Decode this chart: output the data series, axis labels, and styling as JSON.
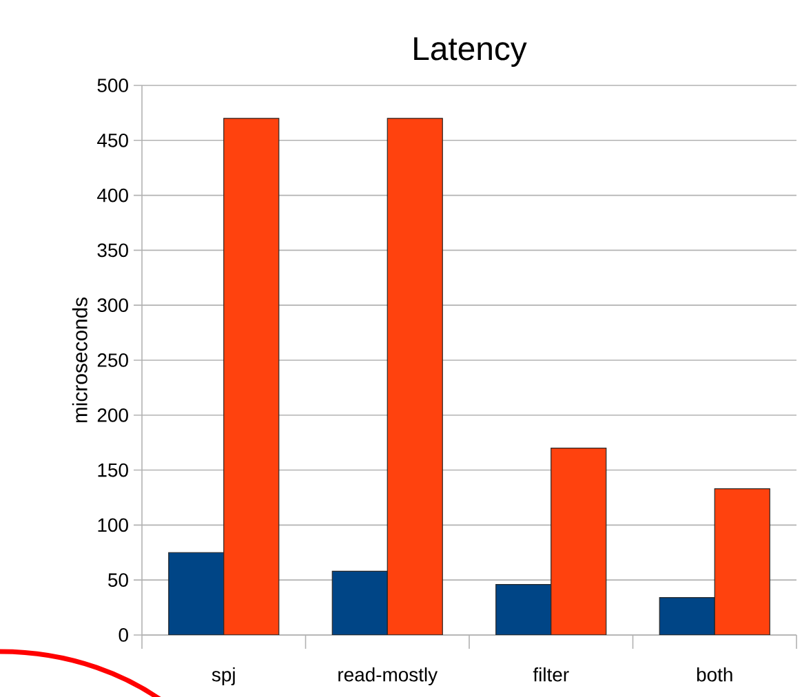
{
  "chart_data": {
    "type": "bar",
    "title": "Latency",
    "ylabel": "microseconds",
    "categories": [
      "spj",
      "read-mostly",
      "filter",
      "both"
    ],
    "series": [
      {
        "color": "#004586",
        "values": [
          75,
          58,
          46,
          34
        ]
      },
      {
        "color": "#ff420e",
        "values": [
          470,
          470,
          170,
          133
        ]
      }
    ],
    "ylim": [
      0,
      500
    ],
    "yticks": [
      0,
      50,
      100,
      150,
      200,
      250,
      300,
      350,
      400,
      450,
      500
    ],
    "grid": "y"
  }
}
